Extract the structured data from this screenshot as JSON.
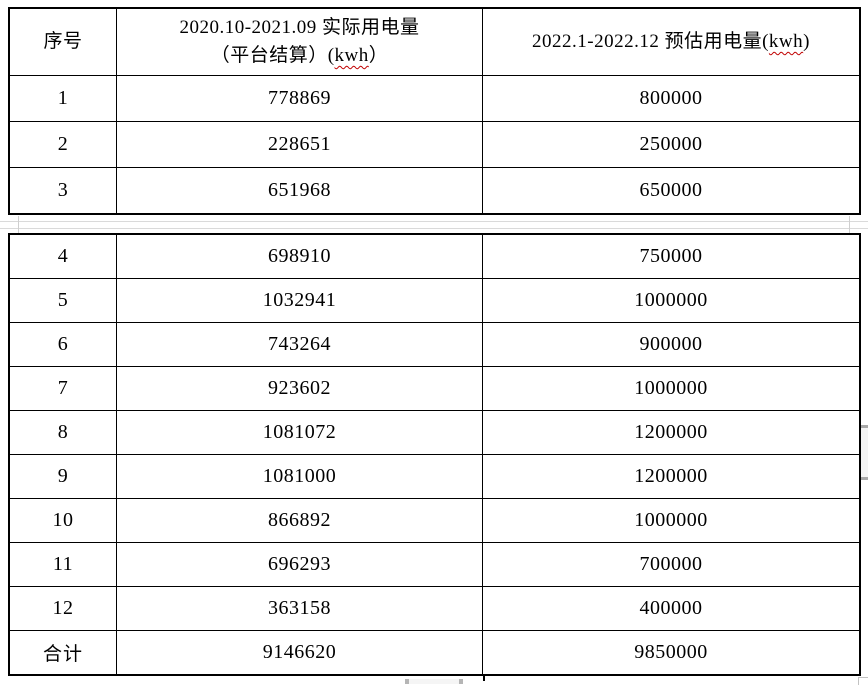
{
  "table": {
    "header": {
      "col1": "序号",
      "col2_line1": "2020.10-2021.09 实际用电量",
      "col2_line2_prefix": "（平台结算）(",
      "col2_kwh": "kwh",
      "col2_line2_suffix": "）",
      "col3_prefix": "2022.1-2022.12 预估用电量(",
      "col3_kwh": "kwh",
      "col3_suffix": ")"
    },
    "rows": [
      {
        "no": "1",
        "actual": "778869",
        "estimate": "800000"
      },
      {
        "no": "2",
        "actual": "228651",
        "estimate": "250000"
      },
      {
        "no": "3",
        "actual": "651968",
        "estimate": "650000"
      },
      {
        "no": "4",
        "actual": "698910",
        "estimate": "750000"
      },
      {
        "no": "5",
        "actual": "1032941",
        "estimate": "1000000"
      },
      {
        "no": "6",
        "actual": "743264",
        "estimate": "900000"
      },
      {
        "no": "7",
        "actual": "923602",
        "estimate": "1000000"
      },
      {
        "no": "8",
        "actual": "1081072",
        "estimate": "1200000"
      },
      {
        "no": "9",
        "actual": "1081000",
        "estimate": "1200000"
      },
      {
        "no": "10",
        "actual": "866892",
        "estimate": "1000000"
      },
      {
        "no": "11",
        "actual": "696293",
        "estimate": "700000"
      },
      {
        "no": "12",
        "actual": "363158",
        "estimate": "400000"
      },
      {
        "no": "合计",
        "actual": "9146620",
        "estimate": "9850000"
      }
    ]
  },
  "colors": {
    "border": "#000000",
    "spellcheck_underline": "#c00000",
    "page_gap_line": "#dadada",
    "scrollbar_body": "#f4f4f4",
    "scrollbar_cap": "#a8a8a8"
  }
}
